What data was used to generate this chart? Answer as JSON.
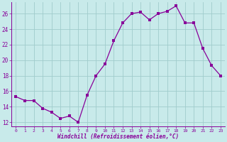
{
  "x": [
    0,
    1,
    2,
    3,
    4,
    5,
    6,
    7,
    8,
    9,
    10,
    11,
    12,
    13,
    14,
    15,
    16,
    17,
    18,
    19,
    20,
    21,
    22,
    23
  ],
  "y": [
    15.3,
    14.8,
    14.8,
    13.8,
    13.3,
    12.5,
    12.8,
    12.0,
    15.5,
    18.0,
    19.5,
    22.5,
    24.8,
    26.0,
    26.2,
    25.2,
    26.0,
    26.3,
    27.0,
    24.8,
    24.8,
    21.5,
    19.3,
    18.0
  ],
  "line_color": "#880099",
  "markersize": 2.5,
  "linewidth": 0.9,
  "bg_color": "#c8eaea",
  "grid_color": "#a0cccc",
  "xlabel": "Windchill (Refroidissement éolien,°C)",
  "tick_color": "#880099",
  "ylim": [
    11.5,
    27.5
  ],
  "yticks": [
    12,
    14,
    16,
    18,
    20,
    22,
    24,
    26
  ],
  "xticks": [
    0,
    1,
    2,
    3,
    4,
    5,
    6,
    7,
    8,
    9,
    10,
    11,
    12,
    13,
    14,
    15,
    16,
    17,
    18,
    19,
    20,
    21,
    22,
    23
  ],
  "xlim": [
    -0.5,
    23.5
  ]
}
